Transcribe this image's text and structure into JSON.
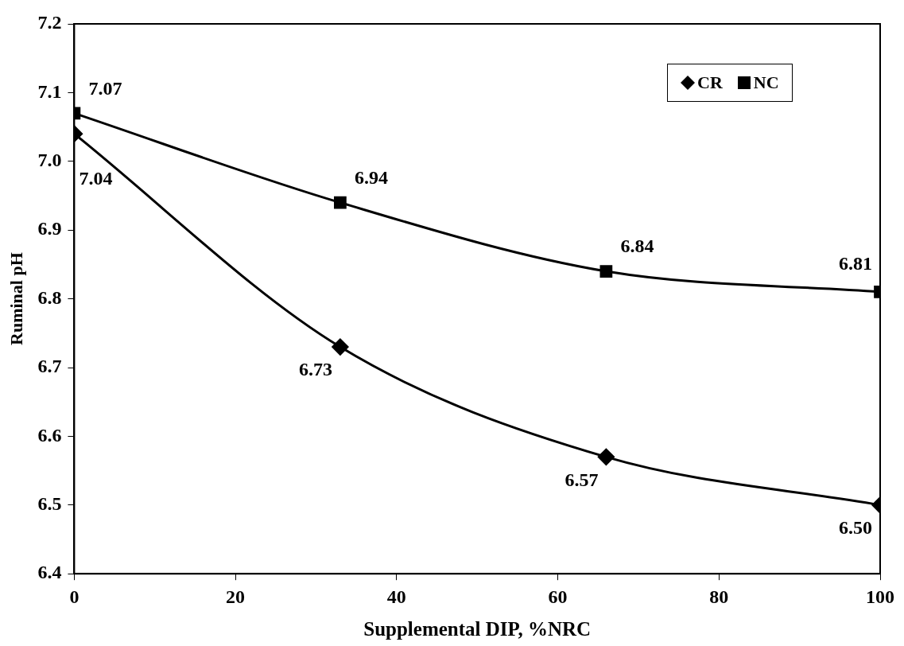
{
  "chart_data": {
    "type": "line",
    "xlabel": "Supplemental DIP, %NRC",
    "ylabel": "Ruminal pH",
    "x": [
      0,
      33,
      66,
      100
    ],
    "series": [
      {
        "name": "CR",
        "color": "#000000",
        "marker": "diamond",
        "values": [
          7.04,
          6.73,
          6.57,
          6.5
        ],
        "value_labels": [
          "7.04",
          "6.73",
          "6.57",
          "6.50"
        ]
      },
      {
        "name": "NC",
        "color": "#000000",
        "marker": "square",
        "values": [
          7.07,
          6.94,
          6.84,
          6.81
        ],
        "value_labels": [
          "7.07",
          "6.94",
          "6.84",
          "6.81"
        ]
      }
    ],
    "xlim": [
      0,
      100
    ],
    "xticks": [
      0,
      20,
      40,
      60,
      80,
      100
    ],
    "ylim": [
      6.4,
      7.2
    ],
    "yticks": [
      6.4,
      6.5,
      6.6,
      6.7,
      6.8,
      6.9,
      {
        "value": 7,
        "label": "7.0"
      },
      7.1,
      7.2
    ],
    "grid": false,
    "legend": "top right",
    "line_style": "solid"
  }
}
